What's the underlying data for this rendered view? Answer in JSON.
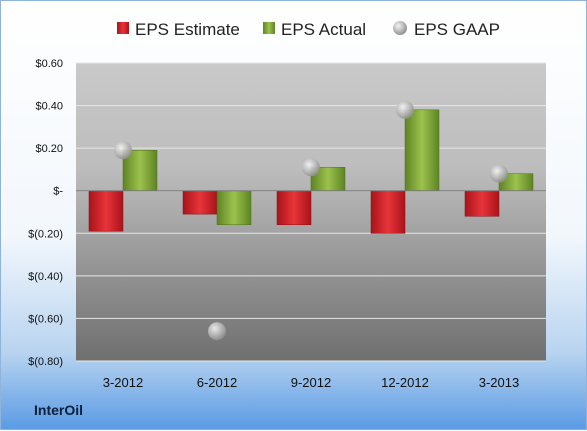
{
  "brand": "InterOil",
  "legend": [
    {
      "name": "EPS Estimate",
      "color": "#d9242b"
    },
    {
      "name": "EPS Actual",
      "color": "#82a83c"
    },
    {
      "name": "EPS GAAP",
      "color": "#b3b3b3"
    }
  ],
  "chart_data": {
    "type": "bar",
    "categories": [
      "3-2012",
      "6-2012",
      "9-2012",
      "12-2012",
      "3-2013"
    ],
    "series": [
      {
        "name": "EPS Estimate",
        "type": "bar",
        "values": [
          -0.19,
          -0.11,
          -0.16,
          -0.2,
          -0.12
        ]
      },
      {
        "name": "EPS Actual",
        "type": "bar",
        "values": [
          0.19,
          -0.16,
          0.11,
          0.38,
          0.08
        ]
      },
      {
        "name": "EPS GAAP",
        "type": "scatter",
        "values": [
          0.19,
          -0.66,
          0.11,
          0.38,
          0.08
        ]
      }
    ],
    "y_ticks": [
      0.6,
      0.4,
      0.2,
      0,
      -0.2,
      -0.4,
      -0.6,
      -0.8
    ],
    "y_tick_labels": [
      "$0.60",
      "$0.40",
      "$0.20",
      "$-",
      "$(0.20)",
      "$(0.40)",
      "$(0.60)",
      "$(0.80)"
    ],
    "ylim": [
      -0.8,
      0.6
    ],
    "grid": true,
    "legend_position": "top"
  }
}
